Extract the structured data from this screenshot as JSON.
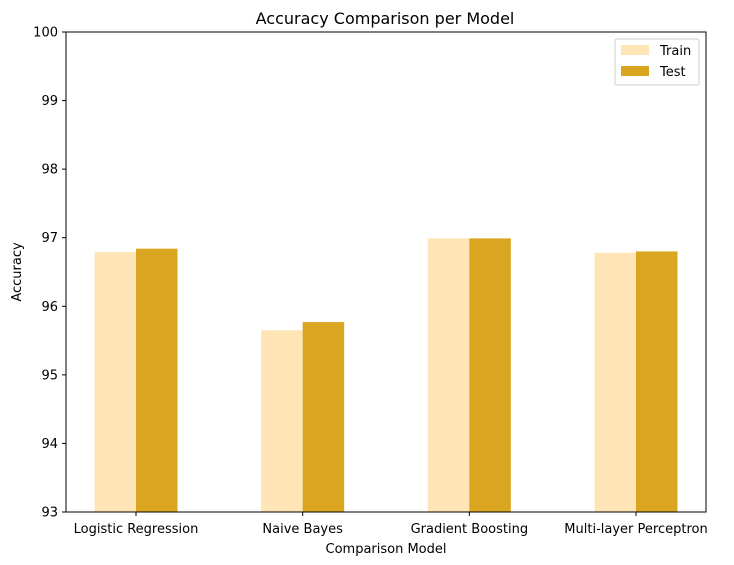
{
  "chart_data": {
    "type": "bar",
    "title": "Accuracy Comparison per Model",
    "xlabel": "Comparison Model",
    "ylabel": "Accuracy",
    "categories": [
      "Logistic Regression",
      "Naive Bayes",
      "Gradient Boosting",
      "Multi-layer Perceptron"
    ],
    "series": [
      {
        "name": "Train",
        "color": "#ffe4b5",
        "values": [
          96.79,
          95.65,
          96.99,
          96.78
        ]
      },
      {
        "name": "Test",
        "color": "#daa520",
        "values": [
          96.84,
          95.77,
          96.99,
          96.8
        ]
      }
    ],
    "ylim": [
      93,
      100
    ],
    "yticks": [
      "93",
      "94",
      "95",
      "96",
      "97",
      "98",
      "99",
      "100"
    ],
    "grid": false,
    "legend": "top-right"
  }
}
